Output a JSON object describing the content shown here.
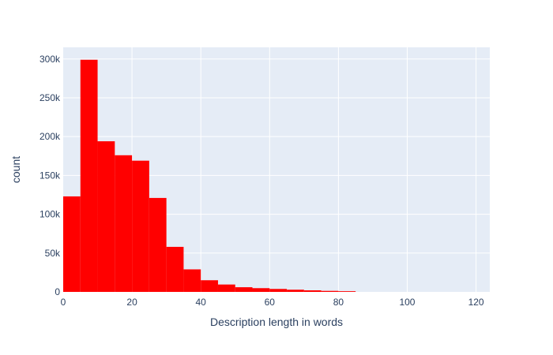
{
  "chart_data": {
    "type": "bar",
    "title": "",
    "xlabel": "Description length in words",
    "ylabel": "count",
    "bin_width": 5,
    "bins": [
      {
        "start": 0,
        "end": 5,
        "count": 123000
      },
      {
        "start": 5,
        "end": 10,
        "count": 299000
      },
      {
        "start": 10,
        "end": 15,
        "count": 194000
      },
      {
        "start": 15,
        "end": 20,
        "count": 176000
      },
      {
        "start": 20,
        "end": 25,
        "count": 169000
      },
      {
        "start": 25,
        "end": 30,
        "count": 121000
      },
      {
        "start": 30,
        "end": 35,
        "count": 58000
      },
      {
        "start": 35,
        "end": 40,
        "count": 29000
      },
      {
        "start": 40,
        "end": 45,
        "count": 15000
      },
      {
        "start": 45,
        "end": 50,
        "count": 9500
      },
      {
        "start": 50,
        "end": 55,
        "count": 6000
      },
      {
        "start": 55,
        "end": 60,
        "count": 4800
      },
      {
        "start": 60,
        "end": 65,
        "count": 3800
      },
      {
        "start": 65,
        "end": 70,
        "count": 2800
      },
      {
        "start": 70,
        "end": 75,
        "count": 2000
      },
      {
        "start": 75,
        "end": 80,
        "count": 1300
      },
      {
        "start": 80,
        "end": 85,
        "count": 900
      }
    ],
    "xlim": [
      0,
      124
    ],
    "ylim": [
      0,
      315000
    ],
    "x_ticks": [
      {
        "value": 0,
        "label": "0"
      },
      {
        "value": 20,
        "label": "20"
      },
      {
        "value": 40,
        "label": "40"
      },
      {
        "value": 60,
        "label": "60"
      },
      {
        "value": 80,
        "label": "80"
      },
      {
        "value": 100,
        "label": "100"
      },
      {
        "value": 120,
        "label": "120"
      }
    ],
    "y_ticks": [
      {
        "value": 0,
        "label": "0"
      },
      {
        "value": 50000,
        "label": "50k"
      },
      {
        "value": 100000,
        "label": "100k"
      },
      {
        "value": 150000,
        "label": "150k"
      },
      {
        "value": 200000,
        "label": "200k"
      },
      {
        "value": 250000,
        "label": "250k"
      },
      {
        "value": 300000,
        "label": "300k"
      }
    ],
    "grid": true,
    "legend": "none",
    "colors": {
      "bar": "#ff0000",
      "plot_background": "#e5ecf6",
      "grid": "#ffffff",
      "text": "#2a3f5f"
    }
  }
}
